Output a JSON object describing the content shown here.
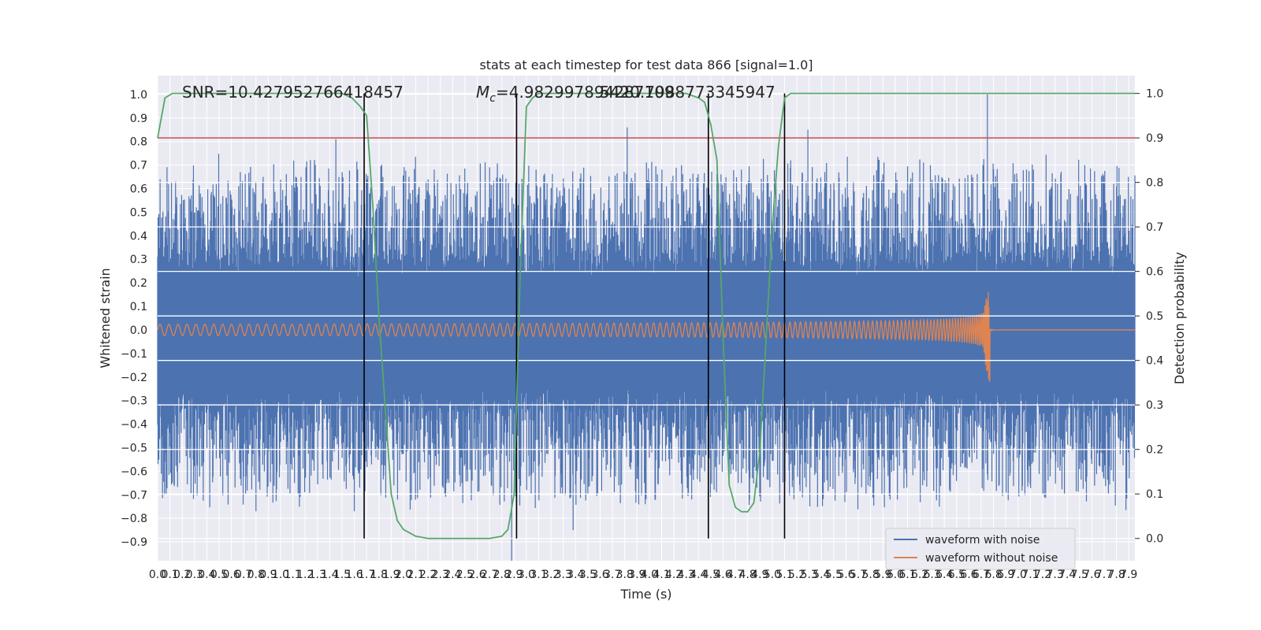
{
  "chart_data": {
    "type": "line",
    "title": "stats at each timestep for test data 866 [signal=1.0]",
    "xlabel": "Time (s)",
    "ylabel_left": "Whitened strain",
    "ylabel_right": "Detection probability",
    "xlim": [
      0.0,
      7.95
    ],
    "ylim_left": [
      -0.98,
      1.08
    ],
    "ylim_right": [
      -0.05,
      1.04
    ],
    "x_ticks": [
      "0.0",
      "0.1",
      "0.2",
      "0.3",
      "0.4",
      "0.5",
      "0.6",
      "0.7",
      "0.8",
      "0.9",
      "1.0",
      "1.1",
      "1.2",
      "1.3",
      "1.4",
      "1.5",
      "1.6",
      "1.7",
      "1.8",
      "1.9",
      "2.0",
      "2.1",
      "2.2",
      "2.3",
      "2.4",
      "2.5",
      "2.6",
      "2.7",
      "2.8",
      "2.9",
      "3.0",
      "3.1",
      "3.2",
      "3.3",
      "3.4",
      "3.5",
      "3.6",
      "3.7",
      "3.8",
      "3.9",
      "4.0",
      "4.1",
      "4.2",
      "4.3",
      "4.4",
      "4.5",
      "4.6",
      "4.7",
      "4.8",
      "4.9",
      "5.0",
      "5.1",
      "5.2",
      "5.3",
      "5.4",
      "5.5",
      "5.6",
      "5.7",
      "5.8",
      "5.9",
      "6.0",
      "6.1",
      "6.2",
      "6.3",
      "6.4",
      "6.5",
      "6.6",
      "6.7",
      "6.8",
      "6.9",
      "7.0",
      "7.1",
      "7.2",
      "7.3",
      "7.4",
      "7.5",
      "7.6",
      "7.7",
      "7.8",
      "7.9"
    ],
    "y_ticks_left": [
      "−0.9",
      "−0.8",
      "−0.7",
      "−0.6",
      "−0.5",
      "−0.4",
      "−0.3",
      "−0.2",
      "−0.1",
      "0.0",
      "0.1",
      "0.2",
      "0.3",
      "0.4",
      "0.5",
      "0.6",
      "0.7",
      "0.8",
      "0.9",
      "1.0"
    ],
    "y_ticks_right": [
      "0.0",
      "0.1",
      "0.2",
      "0.3",
      "0.4",
      "0.5",
      "0.6",
      "0.7",
      "0.8",
      "0.9",
      "1.0"
    ],
    "annotations": {
      "snr": "SNR=10.427952766418457",
      "mc_label": "M",
      "mc_sub": "c",
      "mc_value": "=4.982997894287109",
      "mc_overlap": "5420.7988773345947"
    },
    "threshold_right": 0.9,
    "vertical_markers_s": [
      1.68,
      2.92,
      4.48,
      5.1
    ],
    "series": [
      {
        "name": "waveform with noise",
        "color": "#4c72b0",
        "description": "whitened noisy strain, amplitude mostly within ±0.5 with spikes",
        "spikes": [
          [
            0.02,
            0.64
          ],
          [
            1.45,
            0.81
          ],
          [
            2.88,
            -0.98
          ],
          [
            3.82,
            0.86
          ],
          [
            5.15,
            0.72
          ],
          [
            5.29,
            0.85
          ],
          [
            6.75,
            1.0
          ],
          [
            3.38,
            -0.85
          ],
          [
            1.6,
            -0.77
          ],
          [
            0.8,
            -0.77
          ]
        ]
      },
      {
        "name": "waveform without noise",
        "color": "#dd8452",
        "description": "chirp signal growing toward merger near 6.77 s",
        "merger_time": 6.77,
        "peak_max": 0.21,
        "peak_min": -0.26
      },
      {
        "name": "detection probability",
        "color": "#55a868",
        "axis": "right",
        "x": [
          0.0,
          0.06,
          0.12,
          0.25,
          0.5,
          1.0,
          1.5,
          1.58,
          1.65,
          1.7,
          1.75,
          1.8,
          1.85,
          1.9,
          1.95,
          2.0,
          2.1,
          2.2,
          2.3,
          2.5,
          2.7,
          2.8,
          2.85,
          2.9,
          2.95,
          3.0,
          3.05,
          3.1,
          3.2,
          3.5,
          4.0,
          4.3,
          4.4,
          4.45,
          4.5,
          4.55,
          4.6,
          4.65,
          4.7,
          4.75,
          4.8,
          4.85,
          4.9,
          4.95,
          5.0,
          5.05,
          5.1,
          5.15,
          5.2,
          5.3,
          5.5,
          6.0,
          7.0,
          7.95
        ],
        "y": [
          0.9,
          0.99,
          1.0,
          1.0,
          1.0,
          1.0,
          1.0,
          0.99,
          0.97,
          0.95,
          0.75,
          0.5,
          0.3,
          0.1,
          0.04,
          0.02,
          0.005,
          0.0,
          0.0,
          0.0,
          0.0,
          0.005,
          0.02,
          0.1,
          0.6,
          0.97,
          0.99,
          1.0,
          1.0,
          1.0,
          1.0,
          1.0,
          0.99,
          0.98,
          0.93,
          0.85,
          0.45,
          0.12,
          0.07,
          0.06,
          0.06,
          0.08,
          0.2,
          0.45,
          0.7,
          0.88,
          0.99,
          1.0,
          1.0,
          1.0,
          1.0,
          1.0,
          1.0,
          1.0
        ]
      }
    ],
    "legend": {
      "position": "lower-right",
      "items": [
        "waveform with noise",
        "waveform without noise"
      ]
    },
    "colors": {
      "background": "#eaeaf2",
      "grid": "#ffffff",
      "threshold": "#c44e52",
      "marker": "#000000"
    }
  }
}
